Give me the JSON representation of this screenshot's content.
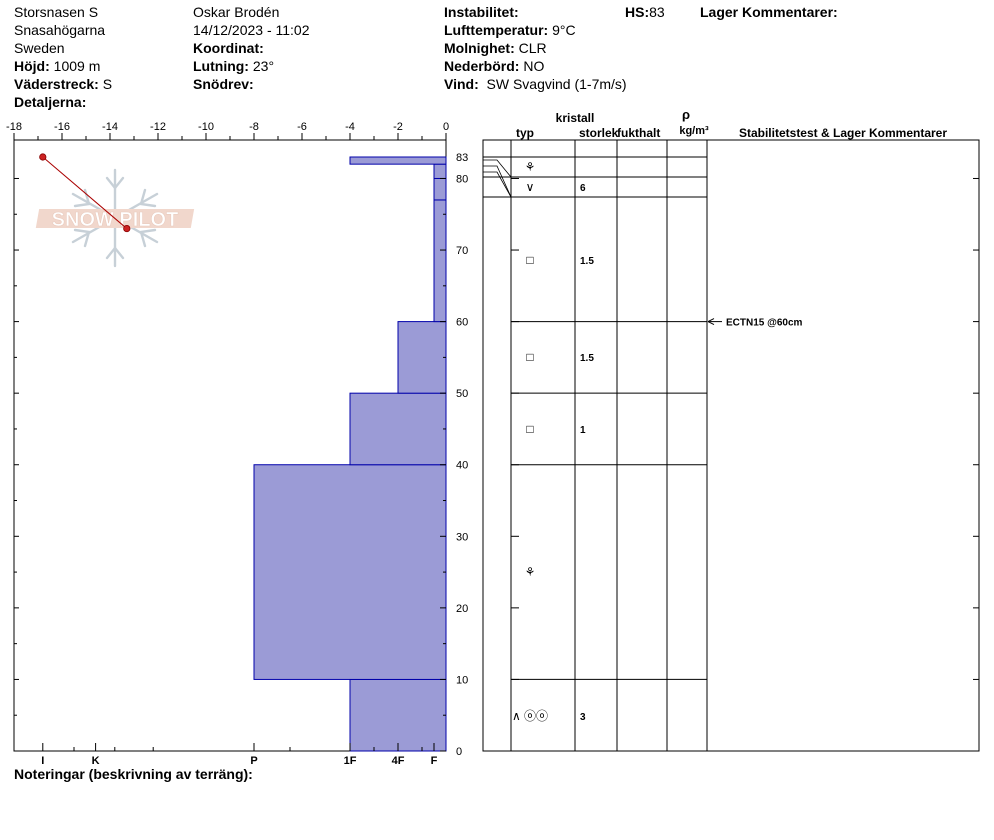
{
  "header": {
    "location": "Storsnasen S",
    "region": "Snasahögarna",
    "country": "Sweden",
    "elevation_label": "Höjd:",
    "elevation_value": "1009 m",
    "aspect_label": "Väderstreck:",
    "aspect_value": "S",
    "details_label": "Detaljerna:",
    "observer": "Oskar Brodén",
    "datetime": "14/12/2023 - 11:02",
    "coord_label": "Koordinat:",
    "slope_label": "Lutning:",
    "slope_value": "23°",
    "drift_label": "Snödrev:",
    "instability_label": "Instabilitet:",
    "airtemp_label": "Lufttemperatur:",
    "airtemp_value": "9°C",
    "sky_label": "Molnighet:",
    "sky_value": "CLR",
    "precip_label": "Nederbörd:",
    "precip_value": "NO",
    "wind_label": "Vind:",
    "wind_value": "SW Svagvind (1-7m/s)",
    "hs_label": "HS:",
    "hs_value": "83",
    "layer_comments_label": "Lager Kommentarer:"
  },
  "watermark": "SNOW PILOT",
  "footer": {
    "notes_label": "Noteringar (beskrivning av terräng):"
  },
  "columns": {
    "crystal_title": "kristall",
    "type": "typ",
    "size": "storlek",
    "moisture": "fukthalt",
    "rho_symbol": "ρ",
    "density_unit": "kg/m³",
    "stability": "Stabilitetstest & Lager Kommentarer"
  },
  "chart_data": {
    "type": "bar",
    "title": "",
    "x_axis": {
      "label": "",
      "range": [
        -18,
        0
      ],
      "ticks": [
        "-18",
        "-16",
        "-14",
        "-12",
        "-10",
        "-8",
        "-6",
        "-4",
        "-2",
        "0"
      ]
    },
    "y_axis": {
      "label": "",
      "range": [
        0,
        83
      ],
      "ticks": [
        "0",
        "10",
        "20",
        "30",
        "40",
        "50",
        "60",
        "70",
        "80",
        "83"
      ]
    },
    "hardness_scale": {
      "labels": [
        "I",
        "K",
        "P",
        "1F",
        "4F",
        "F"
      ],
      "x_values": [
        -16.8,
        -14.6,
        -8,
        -4,
        -2,
        -0.5
      ]
    },
    "temperature_profile": [
      {
        "temp": -16.8,
        "height": 83
      },
      {
        "temp": -13.3,
        "height": 73
      }
    ],
    "layers": [
      {
        "bottom": 0,
        "top": 10,
        "hardness_x": -4,
        "hardness": "1F",
        "crystal_symbols": "∧ ⓞⓞ",
        "size": "3"
      },
      {
        "bottom": 10,
        "top": 40,
        "hardness_x": -8,
        "hardness": "P",
        "crystal_symbols": "⚘",
        "size": ""
      },
      {
        "bottom": 40,
        "top": 50,
        "hardness_x": -4,
        "hardness": "1F",
        "crystal_symbols": "□",
        "size": "1"
      },
      {
        "bottom": 50,
        "top": 60,
        "hardness_x": -2,
        "hardness": "4F",
        "crystal_symbols": "□",
        "size": "1.5"
      },
      {
        "bottom": 60,
        "top": 77,
        "hardness_x": -0.5,
        "hardness": "F",
        "crystal_symbols": "□",
        "size": "1.5"
      },
      {
        "bottom": 77,
        "top": 80,
        "hardness_x": -0.5,
        "hardness": "F",
        "crystal_symbols": "∨",
        "size": "6"
      },
      {
        "bottom": 80,
        "top": 82,
        "hardness_x": -0.5,
        "hardness": "F",
        "crystal_symbols": "⚘",
        "size": ""
      },
      {
        "bottom": 82,
        "top": 83,
        "hardness_x": -4,
        "hardness": "1F",
        "crystal_symbols": "",
        "size": ""
      }
    ],
    "stability_tests": [
      {
        "height": 60,
        "label": "ECTN15 @60cm"
      }
    ],
    "colors": {
      "bar_fill": "#9b9bd6",
      "bar_stroke": "#0000aa",
      "temp_line": "#aa0000",
      "temp_point": "#cc2222"
    }
  }
}
